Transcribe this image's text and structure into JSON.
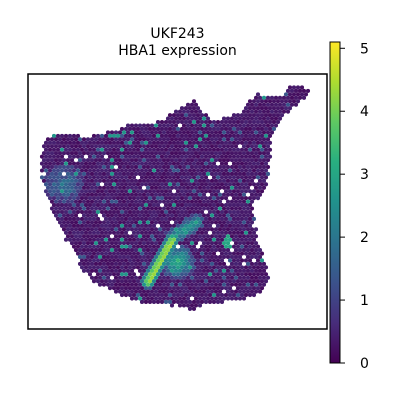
{
  "chart_data": {
    "type": "heatmap",
    "title": "UKF243",
    "subtitle": "HBA1 expression",
    "colormap": "viridis",
    "colorbar": {
      "range": [
        0,
        5.1
      ],
      "ticks": [
        0,
        1,
        2,
        3,
        4,
        5
      ],
      "tick_labels": [
        "0",
        "1",
        "2",
        "3",
        "4",
        "5"
      ]
    },
    "background_value": 0.15,
    "hotspots": [
      {
        "label": "main streak",
        "value": 4.8
      },
      {
        "label": "streak lower end",
        "value": 3.2
      },
      {
        "label": "left cluster",
        "value": 1.6
      },
      {
        "label": "right spot",
        "value": 3.0
      }
    ],
    "grid": false,
    "frame": true
  }
}
